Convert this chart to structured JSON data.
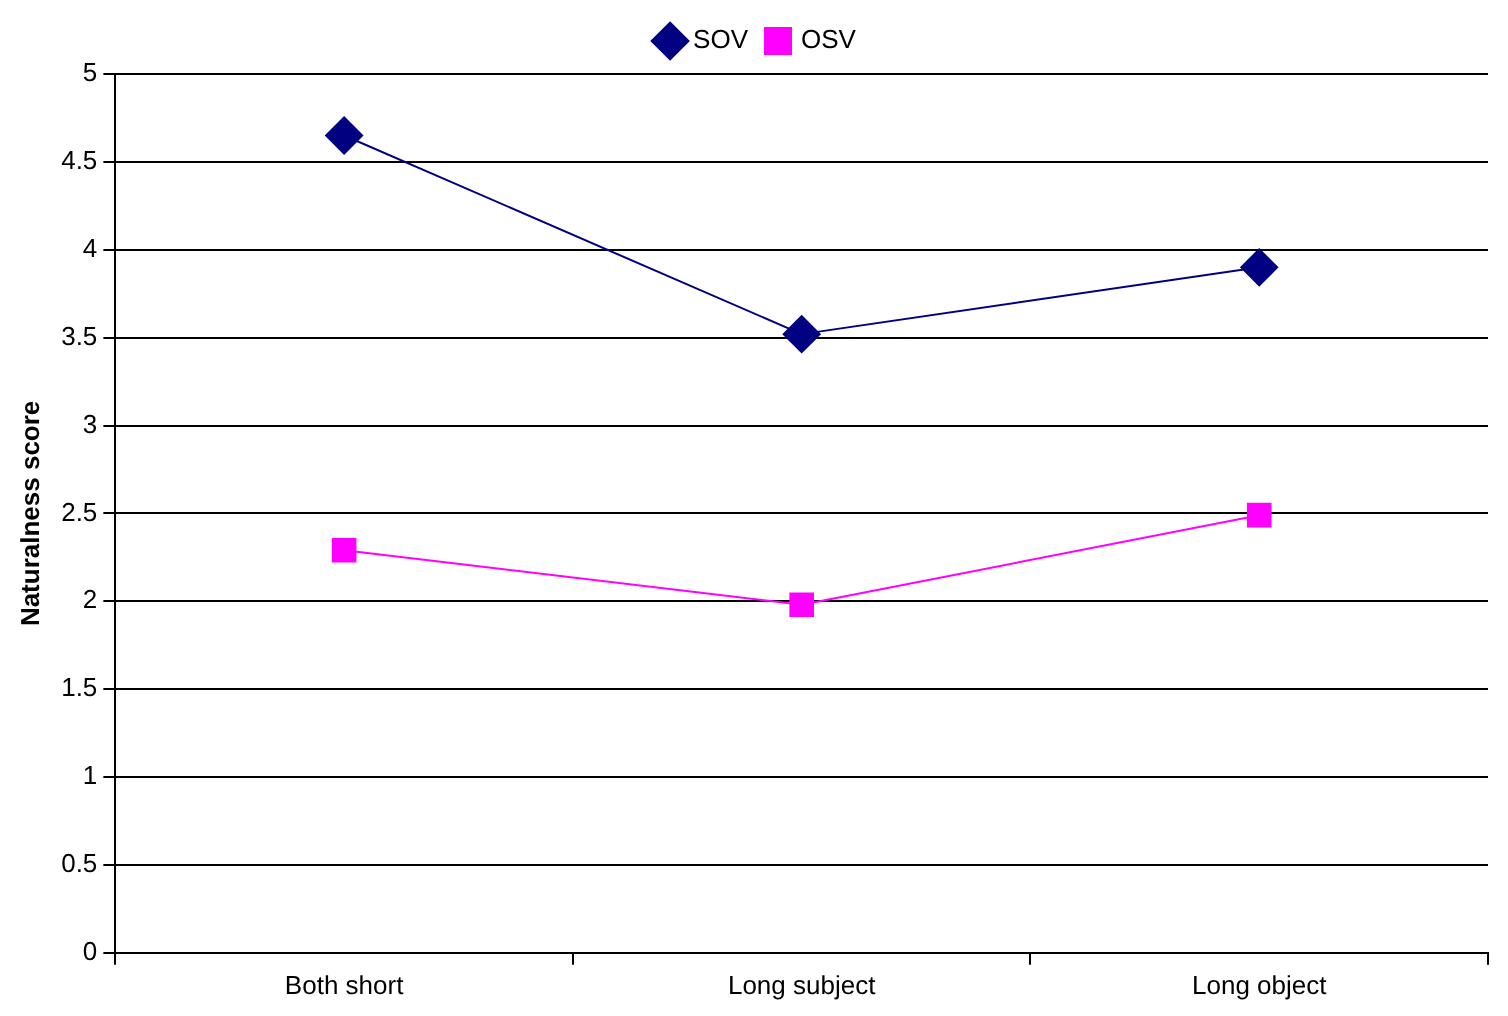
{
  "chart_data": {
    "type": "line",
    "ylabel": "Naturalness score",
    "categories": [
      "Both short",
      "Long subject",
      "Long object"
    ],
    "series": [
      {
        "name": "SOV",
        "color": "#000080",
        "marker": "diamond",
        "values": [
          4.65,
          3.52,
          3.9
        ]
      },
      {
        "name": "OSV",
        "color": "#ff00ff",
        "marker": "square",
        "values": [
          2.29,
          1.98,
          2.49
        ]
      }
    ],
    "ylim": [
      0,
      5
    ],
    "yticks": [
      0,
      0.5,
      1,
      1.5,
      2,
      2.5,
      3,
      3.5,
      4,
      4.5,
      5
    ],
    "grid": "y",
    "legend": "top",
    "line_style": "solid"
  }
}
